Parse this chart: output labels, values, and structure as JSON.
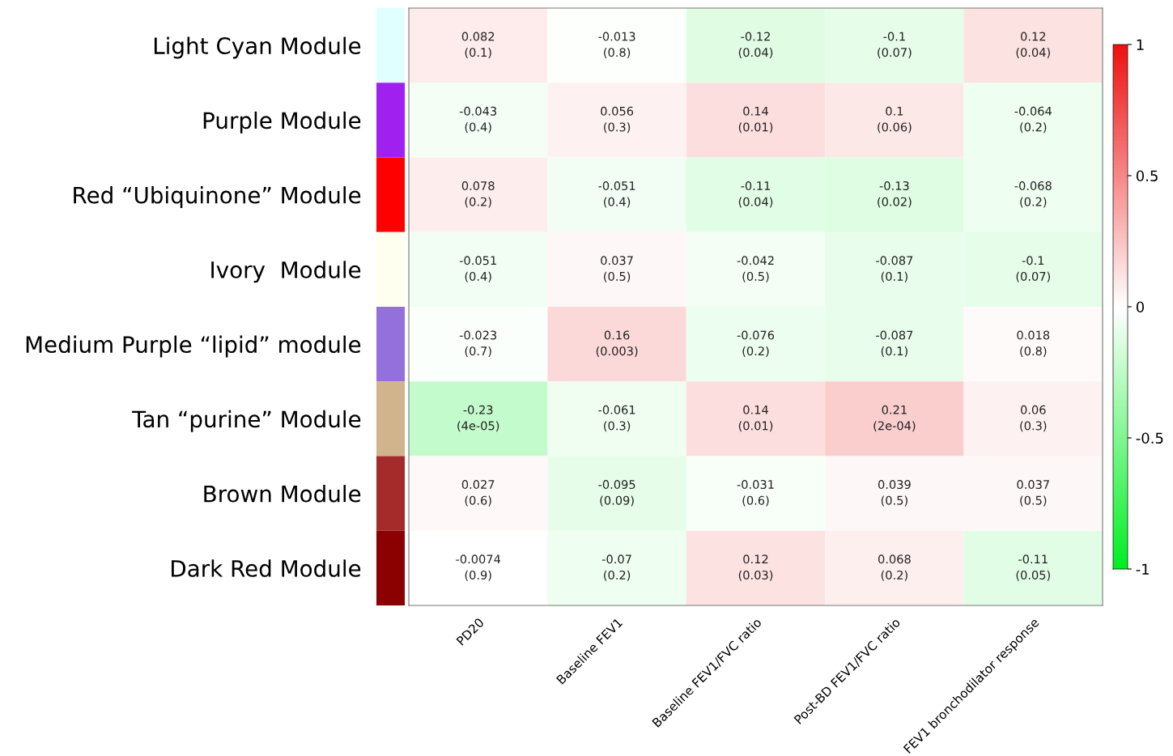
{
  "chart_data": {
    "type": "heatmap",
    "categories": [
      "PD20",
      "Baseline FEV1",
      "Baseline FEV1/FVC ratio",
      "Post-BD FEV1/FVC ratio",
      "FEV1 bronchodilator response"
    ],
    "y_categories": [
      "Light Cyan Module",
      "Purple Module",
      "Red “Ubiquinone” Module",
      "Ivory  Module",
      "Medium Purple “lipid” module",
      "Tan “purine” Module",
      "Brown Module",
      "Dark Red Module"
    ],
    "cells": [
      [
        0.082,
        -0.013,
        -0.12,
        -0.1,
        0.12
      ],
      [
        -0.043,
        0.056,
        0.14,
        0.1,
        -0.064
      ],
      [
        0.078,
        -0.051,
        -0.11,
        -0.13,
        -0.068
      ],
      [
        -0.051,
        0.037,
        -0.042,
        -0.087,
        -0.1
      ],
      [
        -0.023,
        0.16,
        -0.076,
        -0.087,
        0.018
      ],
      [
        -0.23,
        -0.061,
        0.14,
        0.21,
        0.06
      ],
      [
        0.027,
        -0.095,
        -0.031,
        0.039,
        0.037
      ],
      [
        -0.0074,
        -0.07,
        0.12,
        0.068,
        -0.11
      ]
    ],
    "cell_labels": [
      [
        "0.082\n(0.1)",
        "-0.013\n(0.8)",
        "-0.12\n(0.04)",
        "-0.1\n(0.07)",
        "0.12\n(0.04)"
      ],
      [
        "-0.043\n(0.4)",
        "0.056\n(0.3)",
        "0.14\n(0.01)",
        "0.1\n(0.06)",
        "-0.064\n(0.2)"
      ],
      [
        "0.078\n(0.2)",
        "-0.051\n(0.4)",
        "-0.11\n(0.04)",
        "-0.13\n(0.02)",
        "-0.068\n(0.2)"
      ],
      [
        "-0.051\n(0.4)",
        "0.037\n(0.5)",
        "-0.042\n(0.5)",
        "-0.087\n(0.1)",
        "-0.1\n(0.07)"
      ],
      [
        "-0.023\n(0.7)",
        "0.16\n(0.003)",
        "-0.076\n(0.2)",
        "-0.087\n(0.1)",
        "0.018\n(0.8)"
      ],
      [
        "-0.23\n(4e-05)",
        "-0.061\n(0.3)",
        "0.14\n(0.01)",
        "0.21\n(2e-04)",
        "0.06\n(0.3)"
      ],
      [
        "0.027\n(0.6)",
        "-0.095\n(0.09)",
        "-0.031\n(0.6)",
        "0.039\n(0.5)",
        "0.037\n(0.5)"
      ],
      [
        "-0.0074\n(0.9)",
        "-0.07\n(0.2)",
        "0.12\n(0.03)",
        "0.068\n(0.2)",
        "-0.11\n(0.05)"
      ]
    ],
    "clim": [
      -1,
      1
    ],
    "cticks": [
      -1,
      -0.5,
      0,
      0.5,
      1
    ]
  }
}
